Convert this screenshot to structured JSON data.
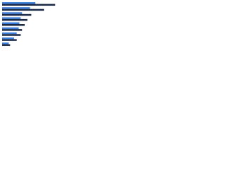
{
  "chart_data": {
    "type": "hbar",
    "categories": [
      null,
      null,
      null,
      null,
      null,
      null,
      null,
      null,
      null
    ],
    "series": [
      {
        "color": "#3a7bd5",
        "values": [
          50,
          42,
          30,
          28,
          26,
          25,
          22,
          18,
          10
        ]
      },
      {
        "color": "#1b2a47",
        "values": [
          80,
          63,
          44,
          38,
          34,
          30,
          28,
          22,
          12
        ]
      }
    ],
    "xlim": [
      0,
      100
    ]
  }
}
